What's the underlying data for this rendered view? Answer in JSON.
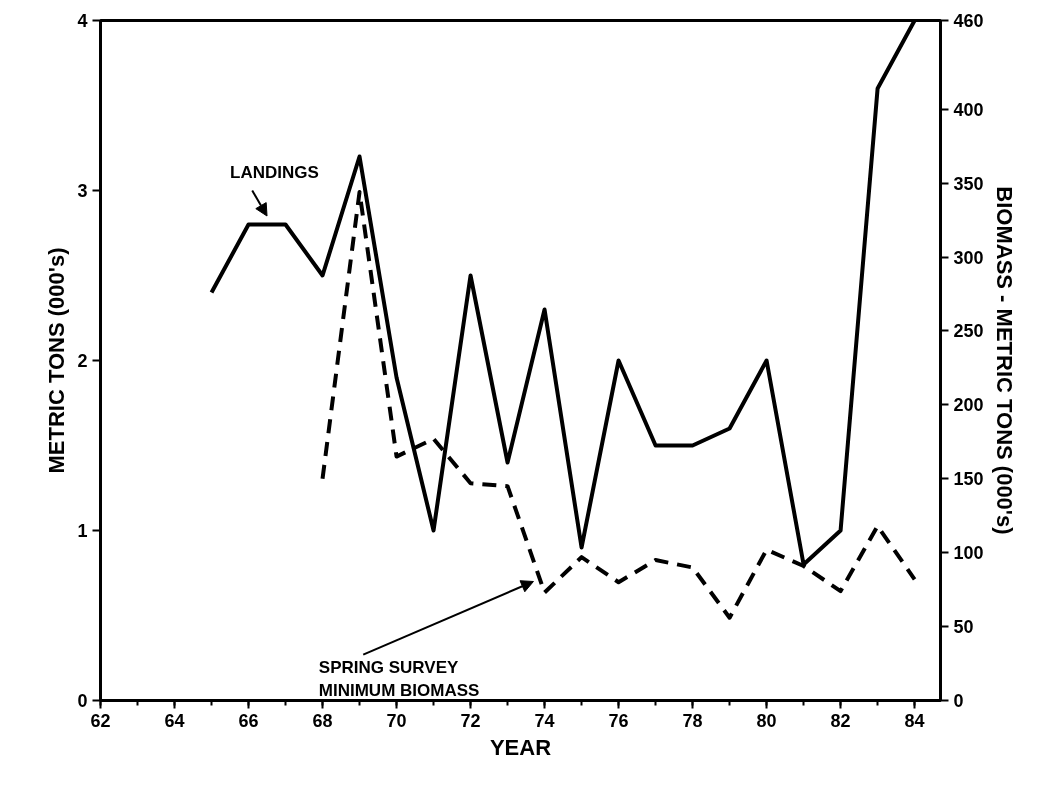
{
  "chart_data": {
    "type": "line",
    "xlabel": "YEAR",
    "ylabel": "METRIC TONS (000's)",
    "y2label": "BIOMASS - METRIC TONS (000's)",
    "x": [
      65,
      66,
      67,
      68,
      69,
      70,
      71,
      72,
      73,
      74,
      75,
      76,
      77,
      78,
      79,
      80,
      81,
      82,
      83,
      84
    ],
    "series": [
      {
        "color": "#000000",
        "line_style": "solid",
        "values": [
          2.4,
          2.8,
          2.8,
          2.5,
          3.2,
          1.9,
          1.0,
          2.5,
          1.4,
          2.3,
          0.9,
          2.0,
          1.5,
          1.5,
          1.6,
          2.0,
          0.8,
          1.0,
          3.6,
          4.0
        ]
      },
      {
        "color": "#000000",
        "line_style": "dashed",
        "axis": "y2",
        "x": [
          68,
          69,
          70,
          71,
          72,
          73,
          74,
          75,
          76,
          77,
          78,
          79,
          80,
          81,
          82,
          83,
          84
        ],
        "values": [
          150,
          344,
          165,
          177,
          147,
          145,
          73,
          97,
          80,
          95,
          90,
          56,
          102,
          91,
          74,
          118,
          82
        ]
      }
    ],
    "xlim": [
      62,
      84.7
    ],
    "xticks": [
      62,
      64,
      66,
      68,
      70,
      72,
      74,
      76,
      78,
      80,
      82,
      84
    ],
    "ylim": [
      0,
      4
    ],
    "yticks": [
      0,
      1,
      2,
      3,
      4
    ],
    "y2lim": [
      0,
      460
    ],
    "y2ticks": [
      0,
      50,
      100,
      150,
      200,
      250,
      300,
      350,
      400,
      460
    ],
    "grid": false,
    "marker": "none",
    "annotations": [
      {
        "text": "LANDINGS",
        "x": 66.5,
        "y": 2.8
      },
      {
        "text": "SPRING SURVEY\nMINIMUM BIOMASS",
        "x": 73.7,
        "y": 0.7
      }
    ]
  }
}
